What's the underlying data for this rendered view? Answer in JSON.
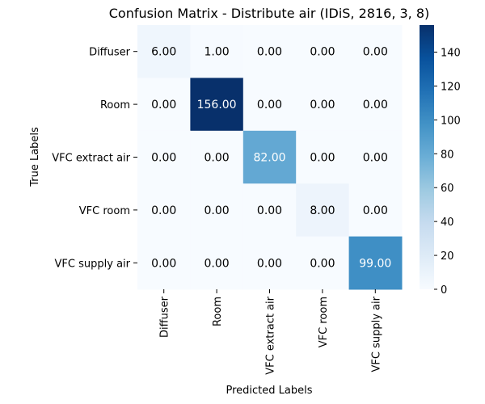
{
  "chart_data": {
    "type": "heatmap",
    "title": "Confusion Matrix - Distribute air (IDiS, 2816, 3, 8)",
    "xlabel": "Predicted Labels",
    "ylabel": "True Labels",
    "x_categories": [
      "Diffuser",
      "Room",
      "VFC extract air",
      "VFC room",
      "VFC supply air"
    ],
    "y_categories": [
      "Diffuser",
      "Room",
      "VFC extract air",
      "VFC room",
      "VFC supply air"
    ],
    "values": [
      [
        6,
        1,
        0,
        0,
        0
      ],
      [
        0,
        156,
        0,
        0,
        0
      ],
      [
        0,
        0,
        82,
        0,
        0
      ],
      [
        0,
        0,
        0,
        8,
        0
      ],
      [
        0,
        0,
        0,
        0,
        99
      ]
    ],
    "value_labels": [
      [
        "6.00",
        "1.00",
        "0.00",
        "0.00",
        "0.00"
      ],
      [
        "0.00",
        "156.00",
        "0.00",
        "0.00",
        "0.00"
      ],
      [
        "0.00",
        "0.00",
        "82.00",
        "0.00",
        "0.00"
      ],
      [
        "0.00",
        "0.00",
        "0.00",
        "8.00",
        "0.00"
      ],
      [
        "0.00",
        "0.00",
        "0.00",
        "0.00",
        "99.00"
      ]
    ],
    "colormap": "Blues",
    "colorbar": {
      "range": [
        0,
        156
      ],
      "ticks": [
        0,
        20,
        40,
        60,
        80,
        100,
        120,
        140
      ],
      "tick_labels": [
        "0",
        "20",
        "40",
        "60",
        "80",
        "100",
        "120",
        "140"
      ]
    },
    "grid": false
  }
}
